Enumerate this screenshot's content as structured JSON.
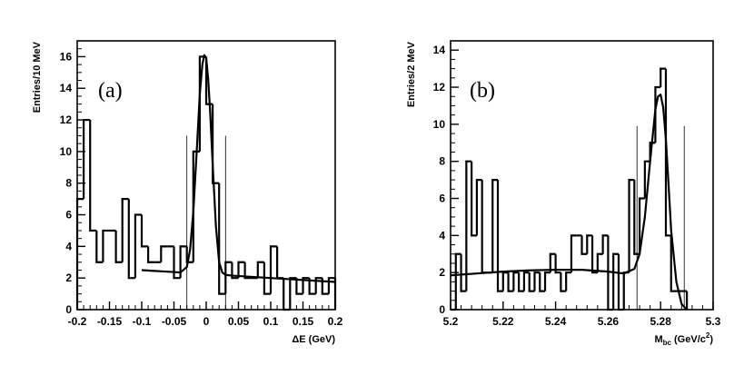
{
  "chart_data": [
    {
      "type": "histogram",
      "panel_label": "(a)",
      "xlabel": "ΔE (GeV)",
      "ylabel": "Entries/10 MeV",
      "xlim": [
        -0.2,
        0.2
      ],
      "ylim": [
        0,
        17
      ],
      "xticks": [
        -0.2,
        -0.15,
        -0.1,
        -0.05,
        0,
        0.05,
        0.1,
        0.15,
        0.2
      ],
      "xtick_labels": [
        "-0.2",
        "-0.15",
        "-0.1",
        "-0.05",
        "0",
        "0.05",
        "0.1",
        "0.15",
        "0.2"
      ],
      "yticks": [
        0,
        2,
        4,
        6,
        8,
        10,
        12,
        14,
        16
      ],
      "bin_edges": [
        -0.2,
        -0.19,
        -0.18,
        -0.17,
        -0.16,
        -0.15,
        -0.14,
        -0.13,
        -0.12,
        -0.11,
        -0.1,
        -0.09,
        -0.08,
        -0.07,
        -0.06,
        -0.05,
        -0.04,
        -0.03,
        -0.02,
        -0.01,
        0,
        0.01,
        0.02,
        0.03,
        0.04,
        0.05,
        0.06,
        0.07,
        0.08,
        0.09,
        0.1,
        0.11,
        0.12,
        0.13,
        0.14,
        0.15,
        0.16,
        0.17,
        0.18,
        0.19,
        0.2
      ],
      "counts": [
        7,
        12,
        5,
        3,
        5,
        5,
        3,
        7,
        2,
        6,
        4,
        3,
        3,
        4,
        4,
        2,
        4,
        3,
        10,
        16,
        13,
        8,
        1,
        3,
        2,
        3,
        2,
        2,
        3,
        1,
        4,
        2,
        0,
        2,
        1,
        2,
        1,
        2,
        1,
        2
      ],
      "fit_curve": {
        "x": [
          -0.1,
          -0.08,
          -0.06,
          -0.04,
          -0.03,
          -0.025,
          -0.02,
          -0.015,
          -0.01,
          -0.006,
          -0.003,
          0,
          0.003,
          0.006,
          0.01,
          0.015,
          0.02,
          0.025,
          0.03,
          0.04,
          0.06,
          0.08,
          0.1,
          0.12,
          0.14,
          0.16,
          0.18,
          0.2
        ],
        "y": [
          2.5,
          2.45,
          2.4,
          2.35,
          2.7,
          3.8,
          6.2,
          9.8,
          13.6,
          15.5,
          16.1,
          15.9,
          14.6,
          12.6,
          9.2,
          5.3,
          3.0,
          2.35,
          2.2,
          2.15,
          2.1,
          2.05,
          2.0,
          1.95,
          1.9,
          1.85,
          1.8,
          1.75
        ]
      },
      "signal_window": [
        -0.03,
        0.03
      ],
      "signal_window_ymax": 11
    },
    {
      "type": "histogram",
      "panel_label": "(b)",
      "xlabel_main": "M",
      "xlabel_sub": "bc",
      "xlabel_units": "(GeV/c",
      "xlabel_sup": "2",
      "xlabel_close": ")",
      "ylabel": "Entries/2 MeV",
      "xlim": [
        5.2,
        5.3
      ],
      "ylim": [
        0,
        14.5
      ],
      "xticks": [
        5.2,
        5.22,
        5.24,
        5.26,
        5.28,
        5.3
      ],
      "xtick_labels": [
        "5.2",
        "5.22",
        "5.24",
        "5.26",
        "5.28",
        "5.3"
      ],
      "yticks": [
        0,
        2,
        4,
        6,
        8,
        10,
        12,
        14
      ],
      "bin_edges": [
        5.2,
        5.202,
        5.204,
        5.206,
        5.208,
        5.21,
        5.212,
        5.214,
        5.216,
        5.218,
        5.22,
        5.222,
        5.224,
        5.226,
        5.228,
        5.23,
        5.232,
        5.234,
        5.236,
        5.238,
        5.24,
        5.242,
        5.244,
        5.246,
        5.248,
        5.25,
        5.252,
        5.254,
        5.256,
        5.258,
        5.26,
        5.262,
        5.264,
        5.266,
        5.268,
        5.27,
        5.272,
        5.274,
        5.276,
        5.278,
        5.28,
        5.282,
        5.284,
        5.286,
        5.288,
        5.29
      ],
      "counts": [
        0,
        3,
        1,
        8,
        4,
        7,
        2,
        2,
        7,
        1,
        2,
        1,
        2,
        1,
        2,
        1,
        2,
        1,
        2,
        3,
        2,
        1,
        2,
        4,
        4,
        3,
        4,
        2,
        3,
        4,
        0,
        3,
        0,
        2,
        7,
        3,
        6,
        8,
        9,
        12,
        13,
        4,
        1,
        1,
        1
      ],
      "fit_curve": {
        "x": [
          5.2,
          5.21,
          5.22,
          5.23,
          5.24,
          5.25,
          5.26,
          5.266,
          5.27,
          5.272,
          5.274,
          5.276,
          5.278,
          5.279,
          5.28,
          5.281,
          5.282,
          5.283,
          5.284,
          5.286,
          5.288,
          5.29
        ],
        "y": [
          1.85,
          1.95,
          2.05,
          2.12,
          2.15,
          2.15,
          2.05,
          1.95,
          2.2,
          3.0,
          5.0,
          8.0,
          10.8,
          11.5,
          11.6,
          10.9,
          9.2,
          6.8,
          4.3,
          1.5,
          0.3,
          0.0
        ]
      },
      "signal_window": [
        5.271,
        5.289
      ],
      "signal_window_ymax": 9.9
    }
  ]
}
